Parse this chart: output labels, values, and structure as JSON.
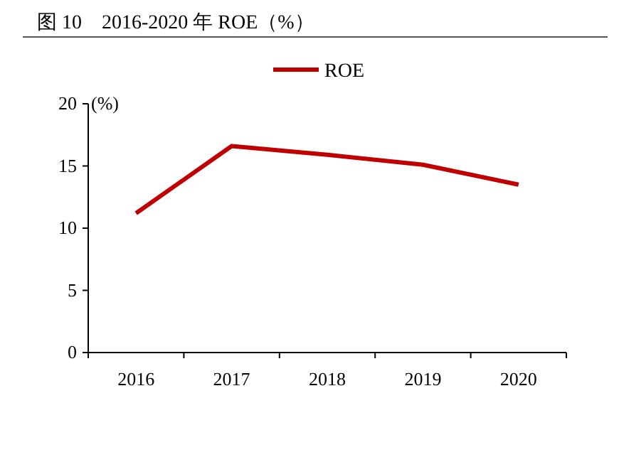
{
  "chart_data": {
    "type": "line",
    "title": "图 10　2016-2020 年 ROE（%）",
    "ylabel": "(%)",
    "categories": [
      "2016",
      "2017",
      "2018",
      "2019",
      "2020"
    ],
    "series": [
      {
        "name": "ROE",
        "color": "#c00000",
        "values": [
          11.2,
          16.6,
          15.9,
          15.1,
          13.5
        ]
      }
    ],
    "ylim": [
      0,
      20
    ],
    "yticks": [
      0,
      5,
      10,
      15,
      20
    ],
    "legend": "top",
    "marker": "none",
    "line_style": "solid"
  }
}
